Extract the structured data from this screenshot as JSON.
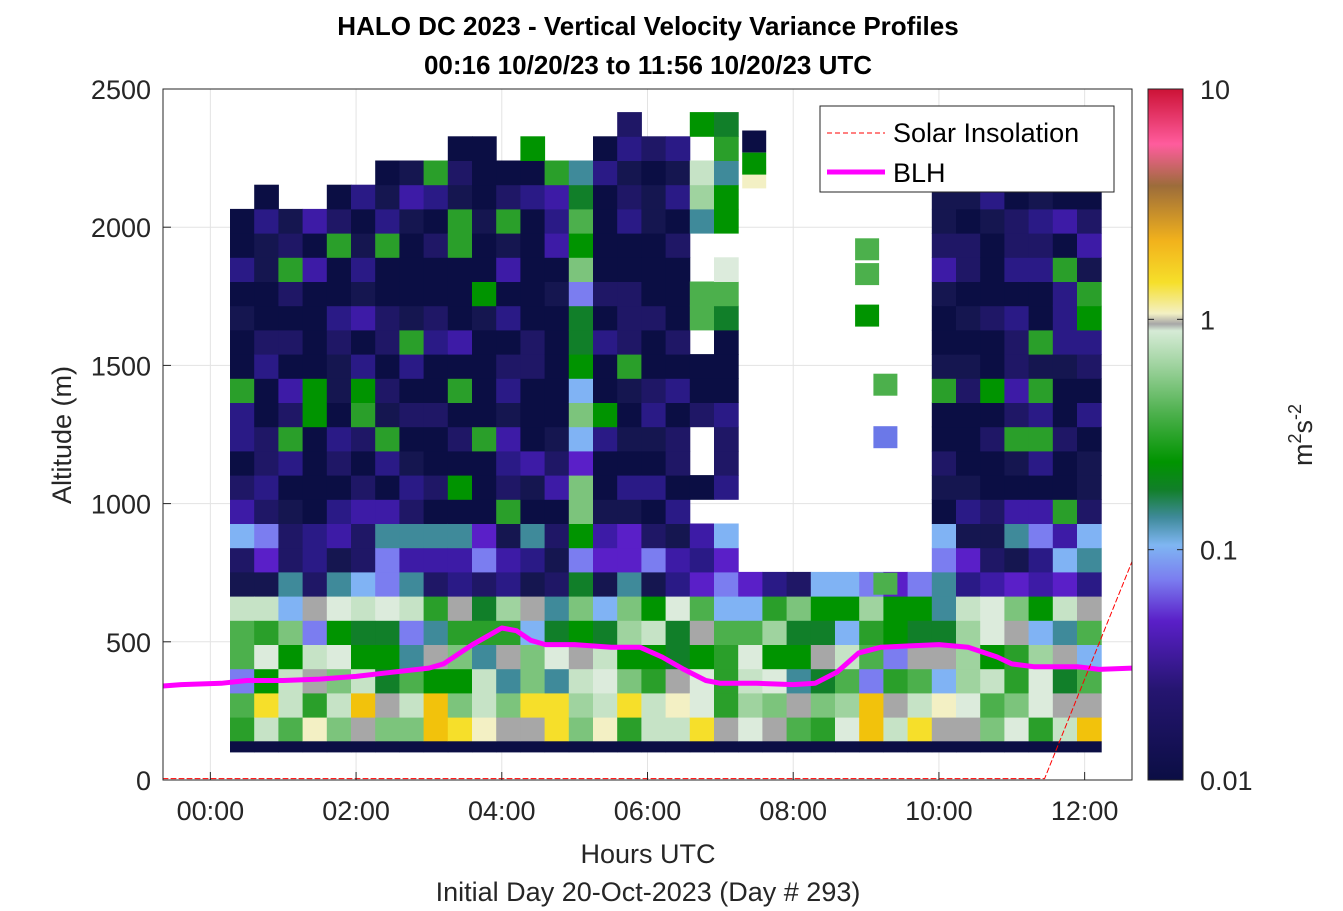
{
  "chart_data": {
    "type": "heatmap",
    "title": "HALO DC 2023 - Vertical Velocity Variance Profiles",
    "subtitle": "00:16 10/20/23 to 11:56 10/20/23  UTC",
    "xlabel": "Hours UTC",
    "footer": "Initial Day 20-Oct-2023 (Day # 293)",
    "ylabel": "Altitude (m)",
    "xlim_hours": [
      -0.65,
      12.65
    ],
    "ylim": [
      0,
      2500
    ],
    "x_ticks": [
      "00:00",
      "02:00",
      "04:00",
      "06:00",
      "08:00",
      "10:00",
      "12:00"
    ],
    "y_ticks": [
      "0",
      "500",
      "1000",
      "1500",
      "2000",
      "2500"
    ],
    "grid": true,
    "colorbar": {
      "label_base": "m",
      "label_sup1": "2",
      "label_mid": "s",
      "label_sup2": "-2",
      "scale": "log",
      "range": [
        0.01,
        10
      ],
      "ticks": [
        "0.01",
        "0.1",
        "1",
        "10"
      ]
    },
    "legend": {
      "location": "top-right",
      "entries": [
        "Solar Insolation",
        "BLH"
      ]
    },
    "series": [
      {
        "name": "BLH",
        "color": "#ff00ff",
        "style": "solid",
        "hours": [
          -0.65,
          -0.4,
          0.15,
          0.5,
          1.0,
          1.5,
          2.0,
          2.5,
          3.0,
          3.2,
          3.4,
          3.6,
          3.8,
          4.0,
          4.2,
          4.4,
          4.6,
          5.0,
          5.5,
          5.9,
          6.2,
          6.5,
          6.8,
          7.0,
          7.5,
          8.0,
          8.3,
          8.6,
          8.9,
          9.2,
          9.6,
          10.0,
          10.4,
          10.8,
          11.0,
          11.3,
          11.6,
          11.9,
          12.2,
          12.65
        ],
        "values": [
          340,
          345,
          350,
          360,
          360,
          365,
          375,
          390,
          405,
          420,
          455,
          490,
          520,
          550,
          540,
          505,
          490,
          490,
          480,
          480,
          445,
          400,
          360,
          350,
          350,
          345,
          350,
          390,
          460,
          480,
          485,
          490,
          480,
          445,
          420,
          410,
          410,
          410,
          400,
          405
        ]
      },
      {
        "name": "Solar Insolation",
        "color": "#ff0000",
        "style": "dashed",
        "hours": [
          -0.65,
          11.45,
          12.65
        ],
        "values": [
          5,
          5,
          790
        ]
      }
    ]
  }
}
